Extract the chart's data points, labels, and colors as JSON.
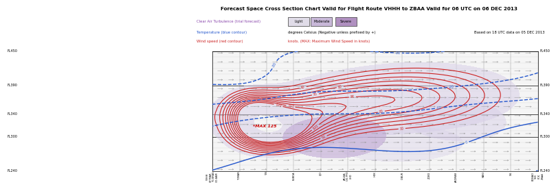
{
  "title": "Forecast Space Cross Section Chart Valid for Flight Route VHHH to ZBAA Valid for 06 UTC on 06 DEC 2013",
  "subtitle": "Based on 18 UTC data on 05 DEC 2013",
  "legend_labels": [
    "Clear Air Turbulence (trial forecast)",
    "Temperature (blue contour)",
    "Wind speed (red contour)"
  ],
  "legend_desc": [
    "degrees Celsius (Negative unless prefixed by +)",
    "knots. (MAX: Maximum Wind Speed in knots)"
  ],
  "cat_labels": [
    "Light",
    "Moderate",
    "Severe"
  ],
  "cat_colors": [
    "#e0dce8",
    "#c8b8d8",
    "#b090c0"
  ],
  "fl_values": [
    450,
    390,
    340,
    300,
    240
  ],
  "station_labels": [
    "VHHH\n07TMAR\nTG BRAS\nGO-BAM",
    "TOMAR",
    "YIN",
    "BUBDA",
    "LJO",
    "AKLBA\nOG PFO\nLHO",
    "HOK",
    "IOBUR",
    "ZOBD",
    "AKOMAR",
    "MAXI",
    "NG",
    "BGNAO\nVYK\nPCK\nZBAA"
  ],
  "bg_color": "#f5f5f5",
  "turb_light_color": "#d8d0e8",
  "turb_mod_color": "#c0a8d4",
  "turb_severe_color": "#a880c0",
  "temp_color": "#2255cc",
  "wind_color": "#cc2222",
  "max_label": "*MAX 125",
  "max_color": "#cc0000",
  "barb_color": "#999999"
}
